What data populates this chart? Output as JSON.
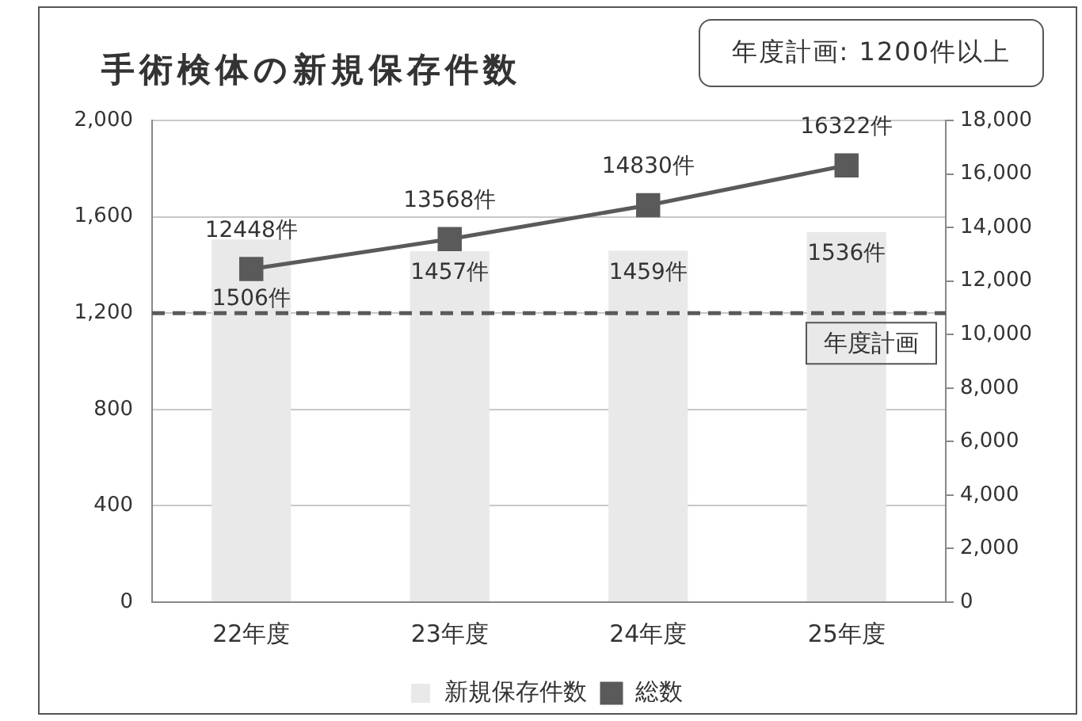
{
  "chart_data": {
    "type": "bar",
    "title": "手術検体の新規保存件数",
    "annotations": [
      "年度計画: 1200件以上"
    ],
    "categories": [
      "22年度",
      "23年度",
      "24年度",
      "25年度"
    ],
    "series": [
      {
        "name": "新規保存件数",
        "color": "#e9e9e9",
        "values": [
          1506,
          1457,
          1459,
          1536
        ],
        "value_labels": [
          "1506件",
          "1457件",
          "1459件",
          "1536件"
        ]
      },
      {
        "name": "総数",
        "type": "line",
        "axis": "y2",
        "color": "#5a5a5a",
        "values": [
          12448,
          13568,
          14830,
          16322
        ],
        "value_labels": [
          "12448件",
          "13568件",
          "14830件",
          "16322件"
        ]
      }
    ],
    "ylim": [
      0,
      2000
    ],
    "yticks": [
      0,
      400,
      800,
      {
        "value": 1200,
        "label": "1,200"
      },
      {
        "value": 1600,
        "label": "1,600"
      },
      {
        "value": 2000,
        "label": "2,000"
      }
    ],
    "y2lim": [
      0,
      18000
    ],
    "y2ticks": [
      0,
      {
        "value": 2000,
        "label": "2,000"
      },
      {
        "value": 4000,
        "label": "4,000"
      },
      {
        "value": 6000,
        "label": "6,000"
      },
      {
        "value": 8000,
        "label": "8,000"
      },
      {
        "value": 10000,
        "label": "10,000"
      },
      {
        "value": 12000,
        "label": "12,000"
      },
      {
        "value": 14000,
        "label": "14,000"
      },
      {
        "value": 16000,
        "label": "16,000"
      },
      {
        "value": 18000,
        "label": "18,000"
      }
    ],
    "ref_lines": [
      {
        "axis": "y",
        "value": 1200,
        "label": "年度計画",
        "line_style": "dashed",
        "color": "#5a5a5a"
      }
    ],
    "grid": "y",
    "legend": "bottom",
    "marker": "square"
  }
}
